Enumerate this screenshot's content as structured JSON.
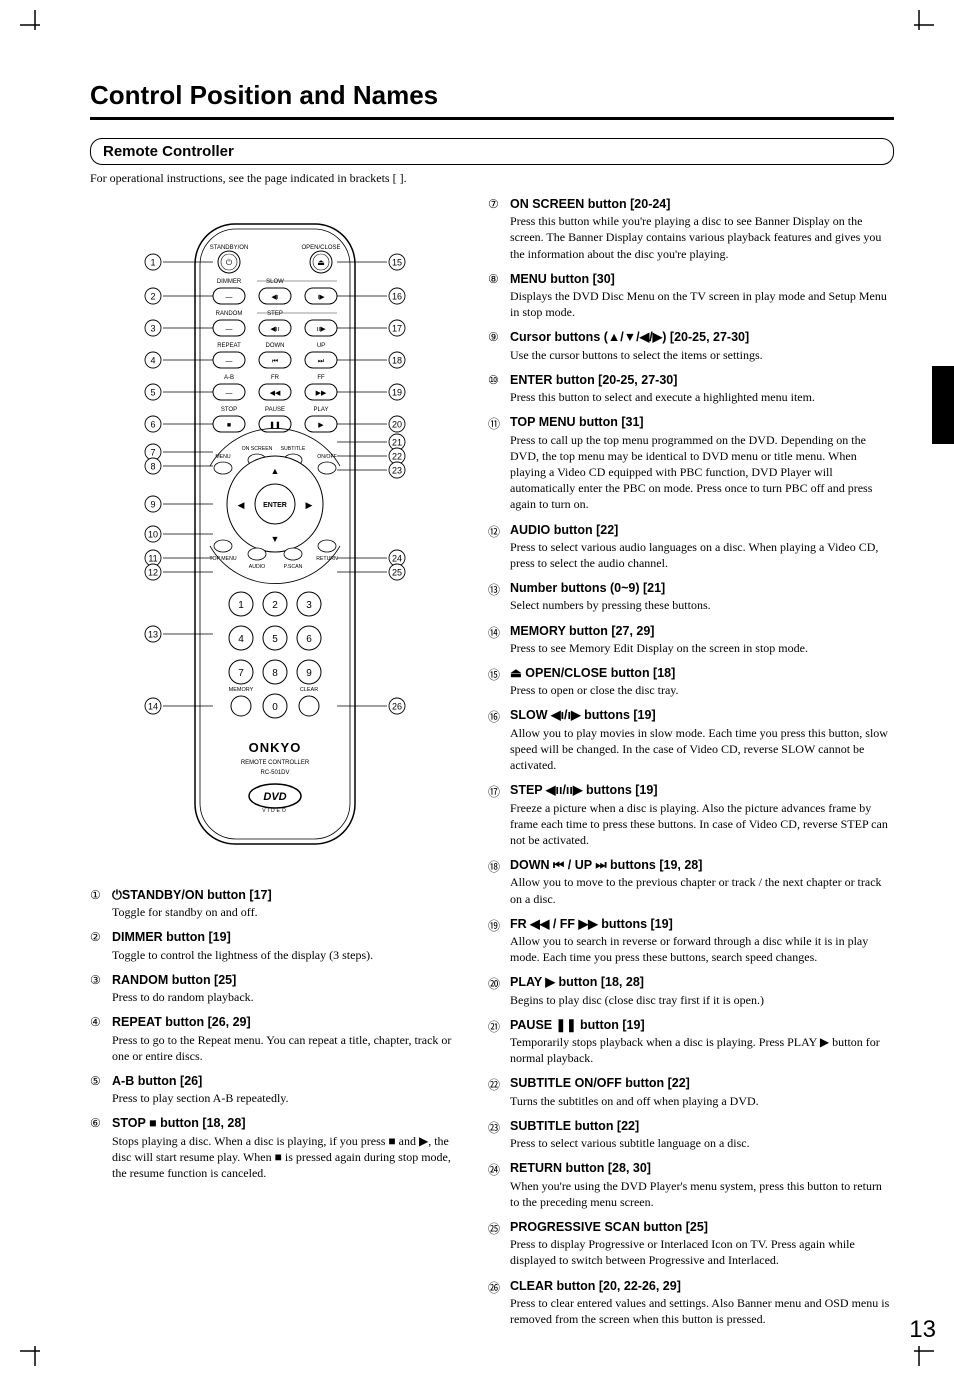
{
  "page_title": "Control Position and Names",
  "section_label": "Remote Controller",
  "intro_text": "For operational instructions, see the page indicated in brackets [  ].",
  "page_number": "13",
  "remote": {
    "brand": "ONKYO",
    "subtitle": "REMOTE CONTROLLER",
    "model": "RC-501DV",
    "logo": "DVD",
    "left_callouts": [
      "1",
      "2",
      "3",
      "4",
      "5",
      "6",
      "7",
      "8",
      "9",
      "10",
      "11",
      "12",
      "13",
      "14"
    ],
    "right_callouts": [
      "15",
      "16",
      "17",
      "18",
      "19",
      "20",
      "21",
      "22",
      "23",
      "24",
      "25",
      "26"
    ],
    "button_rows": [
      {
        "labels": [
          "STANDBY/ON",
          "",
          "OPEN/CLOSE"
        ],
        "icons": [
          "⏻",
          "",
          "⏏"
        ]
      },
      {
        "labels": [
          "DIMMER",
          "SLOW",
          ""
        ],
        "icons": [
          "—",
          "◀ı",
          "ı▶"
        ]
      },
      {
        "labels": [
          "RANDOM",
          "STEP",
          ""
        ],
        "icons": [
          "—",
          "◀ıı",
          "ıı▶"
        ]
      },
      {
        "labels": [
          "REPEAT",
          "DOWN",
          "UP"
        ],
        "icons": [
          "—",
          "⏮",
          "⏭"
        ]
      },
      {
        "labels": [
          "A-B",
          "FR",
          "FF"
        ],
        "icons": [
          "—",
          "◀◀",
          "▶▶"
        ]
      },
      {
        "labels": [
          "STOP",
          "PAUSE",
          "PLAY"
        ],
        "icons": [
          "■",
          "❚❚",
          "▶"
        ]
      }
    ],
    "arc_labels": [
      "MENU",
      "ON SCREEN",
      "SUBTITLE",
      "ON/OFF"
    ],
    "center_button": "ENTER",
    "bottom_arc_labels": [
      "TOP MENU",
      "AUDIO",
      "P.SCAN",
      "RETURN"
    ],
    "numpad": [
      "1",
      "2",
      "3",
      "4",
      "5",
      "6",
      "7",
      "8",
      "9",
      "0"
    ],
    "numpad_side_labels": [
      "MEMORY",
      "CLEAR"
    ]
  },
  "entries_left": [
    {
      "n": "①",
      "title": "⏻STANDBY/ON button [17]",
      "desc": "Toggle for standby on and off."
    },
    {
      "n": "②",
      "title": "DIMMER button [19]",
      "desc": "Toggle to control the lightness of the display (3 steps)."
    },
    {
      "n": "③",
      "title": "RANDOM button [25]",
      "desc": "Press to do random playback."
    },
    {
      "n": "④",
      "title": "REPEAT button [26, 29]",
      "desc": "Press to go to the Repeat menu. You can repeat a title, chapter, track or one or entire discs."
    },
    {
      "n": "⑤",
      "title": "A-B button [26]",
      "desc": "Press to play section A-B repeatedly."
    },
    {
      "n": "⑥",
      "title": "STOP ■ button [18, 28]",
      "desc": "Stops playing a disc. When a disc is playing, if you press ■ and ▶, the disc will start resume play. When ■ is pressed again during stop mode, the resume function is canceled."
    }
  ],
  "entries_right": [
    {
      "n": "⑦",
      "title": "ON SCREEN button [20-24]",
      "desc": "Press this button while you're playing a disc to see Banner Display on the screen. The Banner Display contains various playback features and gives you the information about the disc you're playing."
    },
    {
      "n": "⑧",
      "title": "MENU button [30]",
      "desc": "Displays the DVD Disc Menu on the TV screen in play mode and Setup Menu in stop mode."
    },
    {
      "n": "⑨",
      "title": "Cursor buttons (▲/▼/◀/▶) [20-25, 27-30]",
      "desc": "Use the cursor buttons to select the items or settings."
    },
    {
      "n": "⑩",
      "title": "ENTER button [20-25, 27-30]",
      "desc": "Press this button to select and execute a highlighted menu item."
    },
    {
      "n": "⑪",
      "title": "TOP MENU button [31]",
      "desc": "Press to call up the top menu programmed on the DVD. Depending on the DVD, the top menu may be identical to DVD menu or title menu. When playing a Video CD equipped with PBC function, DVD Player will automatically enter the PBC on mode. Press once to turn PBC off and press again to turn on."
    },
    {
      "n": "⑫",
      "title": "AUDIO button [22]",
      "desc": "Press to select various audio languages on a disc. When playing a Video CD, press to select the audio channel."
    },
    {
      "n": "⑬",
      "title": "Number buttons (0~9) [21]",
      "desc": "Select numbers by pressing these buttons."
    },
    {
      "n": "⑭",
      "title": "MEMORY button [27, 29]",
      "desc": "Press to see Memory Edit Display on the screen in stop mode."
    },
    {
      "n": "⑮",
      "title": "⏏ OPEN/CLOSE button [18]",
      "desc": "Press to open or close the disc tray."
    },
    {
      "n": "⑯",
      "title": "SLOW ◀ı/ı▶ buttons [19]",
      "desc": "Allow you to play movies in slow mode. Each time you press this button, slow speed will be changed. In  the case of Video CD, reverse SLOW cannot be activated."
    },
    {
      "n": "⑰",
      "title": "STEP ◀ıı/ıı▶ buttons [19]",
      "desc": "Freeze a picture when a disc is playing. Also the picture advances frame by frame each time to press these buttons. In case of Video CD, reverse STEP can not be activated."
    },
    {
      "n": "⑱",
      "title": "DOWN ⏮ / UP ⏭ buttons [19, 28]",
      "desc": "Allow you to move to the previous chapter or track / the next chapter or track on a disc."
    },
    {
      "n": "⑲",
      "title": "FR ◀◀ / FF ▶▶ buttons [19]",
      "desc": "Allow you to search in reverse or forward through a disc while it is in play mode. Each time you press these buttons, search speed changes."
    },
    {
      "n": "⑳",
      "title": "PLAY ▶  button [18, 28]",
      "desc": "Begins to play disc (close disc tray first if it is open.)"
    },
    {
      "n": "㉑",
      "title": "PAUSE ❚❚ button [19]",
      "desc": "Temporarily stops playback when a disc is playing. Press PLAY ▶ button for normal playback."
    },
    {
      "n": "㉒",
      "title": "SUBTITLE ON/OFF button [22]",
      "desc": "Turns the subtitles on and off when playing a DVD."
    },
    {
      "n": "㉓",
      "title": "SUBTITLE button [22]",
      "desc": "Press to select various subtitle language on a disc."
    },
    {
      "n": "㉔",
      "title": "RETURN button [28, 30]",
      "desc": "When you're using the DVD Player's menu system, press this button to return to the preceding menu screen."
    },
    {
      "n": "㉕",
      "title": "PROGRESSIVE SCAN button [25]",
      "desc": "Press to display Progressive or Interlaced Icon on TV. Press again while displayed to switch between Progressive and Interlaced."
    },
    {
      "n": "㉖",
      "title": "CLEAR button [20, 22-26, 29]",
      "desc": "Press to clear entered values and settings. Also Banner menu and OSD menu is removed from the screen when this button is pressed."
    }
  ]
}
